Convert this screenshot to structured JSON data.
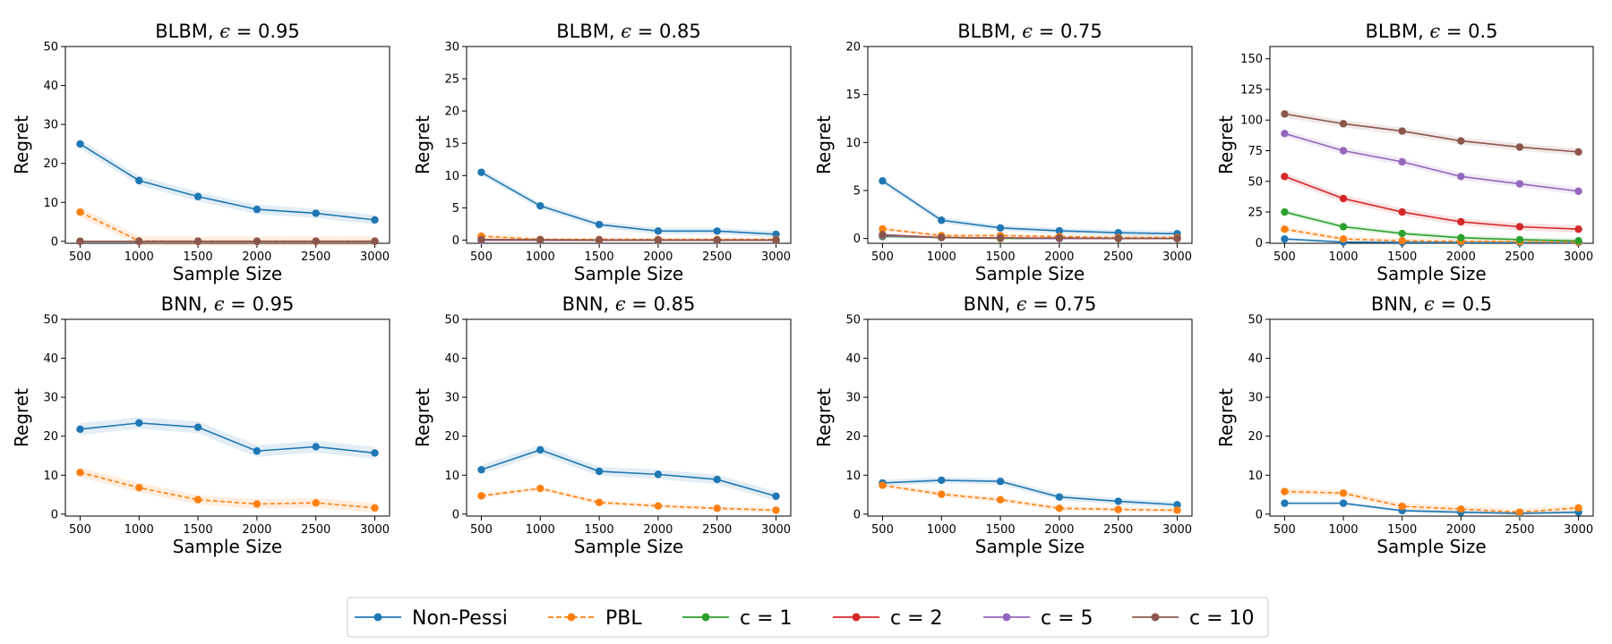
{
  "legend": [
    {
      "name": "Non-Pessi",
      "color": "#1f77b4",
      "dashed": false
    },
    {
      "name": "PBL",
      "color": "#ff7f0e",
      "dashed": true
    },
    {
      "name": "c = 1",
      "color": "#2ca02c",
      "dashed": false
    },
    {
      "name": "c = 2",
      "color": "#d62728",
      "dashed": false
    },
    {
      "name": "c = 5",
      "color": "#9467bd",
      "dashed": false
    },
    {
      "name": "c = 10",
      "color": "#8c564b",
      "dashed": false
    }
  ],
  "chart_data": [
    {
      "type": "line",
      "title_prefix": "BLBM, ",
      "epsilon": "0.95",
      "xlabel": "Sample Size",
      "ylabel": "Regret",
      "x": [
        500,
        1000,
        1500,
        2000,
        2500,
        3000
      ],
      "ylim": [
        -0.5,
        50
      ],
      "yticks": [
        0,
        10,
        20,
        30,
        40,
        50
      ],
      "series": [
        {
          "name": "Non-Pessi",
          "values": [
            25,
            15.6,
            11.5,
            8.2,
            7.2,
            5.5
          ],
          "band": 1.2
        },
        {
          "name": "PBL",
          "values": [
            7.5,
            0.1,
            0.05,
            0.05,
            0.05,
            0.05
          ],
          "band": 1.2
        },
        {
          "name": "c = 1",
          "values": [
            0,
            0,
            0,
            0,
            0,
            0
          ],
          "band": 0
        },
        {
          "name": "c = 2",
          "values": [
            0,
            0,
            0,
            0,
            0,
            0
          ],
          "band": 0
        },
        {
          "name": "c = 5",
          "values": [
            0,
            0,
            0,
            0,
            0,
            0
          ],
          "band": 0
        },
        {
          "name": "c = 10",
          "values": [
            0,
            0,
            0,
            0,
            0,
            0
          ],
          "band": 0
        }
      ]
    },
    {
      "type": "line",
      "title_prefix": "BLBM, ",
      "epsilon": "0.85",
      "xlabel": "Sample Size",
      "ylabel": "Regret",
      "x": [
        500,
        1000,
        1500,
        2000,
        2500,
        3000
      ],
      "ylim": [
        -0.5,
        30
      ],
      "yticks": [
        0,
        5,
        10,
        15,
        20,
        25,
        30
      ],
      "series": [
        {
          "name": "Non-Pessi",
          "values": [
            10.5,
            5.3,
            2.4,
            1.4,
            1.4,
            0.9
          ],
          "band": 0.5
        },
        {
          "name": "PBL",
          "values": [
            0.6,
            0.1,
            0.1,
            0.1,
            0.1,
            0.1
          ],
          "band": 0.3
        },
        {
          "name": "c = 1",
          "values": [
            0,
            0,
            0,
            0,
            0,
            0
          ],
          "band": 0
        },
        {
          "name": "c = 2",
          "values": [
            0,
            0,
            0,
            0,
            0,
            0
          ],
          "band": 0
        },
        {
          "name": "c = 5",
          "values": [
            0,
            0,
            0,
            0,
            0,
            0
          ],
          "band": 0
        },
        {
          "name": "c = 10",
          "values": [
            0.1,
            0.05,
            0,
            0,
            0,
            0
          ],
          "band": 0
        }
      ]
    },
    {
      "type": "line",
      "title_prefix": "BLBM, ",
      "epsilon": "0.75",
      "xlabel": "Sample Size",
      "ylabel": "Regret",
      "x": [
        500,
        1000,
        1500,
        2000,
        2500,
        3000
      ],
      "ylim": [
        -0.5,
        20
      ],
      "yticks": [
        0,
        5,
        10,
        15,
        20
      ],
      "series": [
        {
          "name": "Non-Pessi",
          "values": [
            6,
            1.9,
            1.1,
            0.8,
            0.6,
            0.5
          ],
          "band": 0.3
        },
        {
          "name": "PBL",
          "values": [
            1.0,
            0.3,
            0.3,
            0.2,
            0.1,
            0.1
          ],
          "band": 0.2
        },
        {
          "name": "c = 1",
          "values": [
            0.2,
            0.1,
            0,
            0,
            0,
            0
          ],
          "band": 0
        },
        {
          "name": "c = 2",
          "values": [
            0.3,
            0.1,
            0.05,
            0,
            0,
            0
          ],
          "band": 0
        },
        {
          "name": "c = 5",
          "values": [
            0.3,
            0.1,
            0.05,
            0,
            0,
            0
          ],
          "band": 0
        },
        {
          "name": "c = 10",
          "values": [
            0.4,
            0.1,
            0.05,
            0.05,
            0,
            0
          ],
          "band": 0
        }
      ]
    },
    {
      "type": "line",
      "title_prefix": "BLBM, ",
      "epsilon": "0.5",
      "xlabel": "Sample Size",
      "ylabel": "Regret",
      "x": [
        500,
        1000,
        1500,
        2000,
        2500,
        3000
      ],
      "ylim": [
        -0.5,
        160
      ],
      "yticks": [
        0,
        25,
        50,
        75,
        100,
        125,
        150
      ],
      "series": [
        {
          "name": "Non-Pessi",
          "values": [
            3,
            0.5,
            0.2,
            0.1,
            0.1,
            0.1
          ],
          "band": 1
        },
        {
          "name": "PBL",
          "values": [
            11,
            3,
            1.5,
            1,
            0.8,
            0.5
          ],
          "band": 2
        },
        {
          "name": "c = 1",
          "values": [
            25,
            13,
            7.5,
            4,
            2.5,
            1.5
          ],
          "band": 2
        },
        {
          "name": "c = 2",
          "values": [
            54,
            36,
            25,
            17,
            13,
            11
          ],
          "band": 3
        },
        {
          "name": "c = 5",
          "values": [
            89,
            75,
            66,
            54,
            48,
            42
          ],
          "band": 3
        },
        {
          "name": "c = 10",
          "values": [
            105,
            97,
            91,
            83,
            78,
            74
          ],
          "band": 3
        }
      ]
    },
    {
      "type": "line",
      "title_prefix": "BNN, ",
      "epsilon": "0.95",
      "xlabel": "Sample Size",
      "ylabel": "Regret",
      "x": [
        500,
        1000,
        1500,
        2000,
        2500,
        3000
      ],
      "ylim": [
        -0.5,
        50
      ],
      "yticks": [
        0,
        10,
        20,
        30,
        40,
        50
      ],
      "series": [
        {
          "name": "Non-Pessi",
          "values": [
            21.8,
            23.4,
            22.3,
            16.2,
            17.3,
            15.7
          ],
          "band": 1.5
        },
        {
          "name": "PBL",
          "values": [
            10.7,
            6.8,
            3.7,
            2.6,
            2.9,
            1.6
          ],
          "band": 1.2
        }
      ]
    },
    {
      "type": "line",
      "title_prefix": "BNN, ",
      "epsilon": "0.85",
      "xlabel": "Sample Size",
      "ylabel": "Regret",
      "x": [
        500,
        1000,
        1500,
        2000,
        2500,
        3000
      ],
      "ylim": [
        -0.5,
        50
      ],
      "yticks": [
        0,
        10,
        20,
        30,
        40,
        50
      ],
      "series": [
        {
          "name": "Non-Pessi",
          "values": [
            11.4,
            16.5,
            11,
            10.2,
            8.9,
            4.6
          ],
          "band": 1.2
        },
        {
          "name": "PBL",
          "values": [
            4.7,
            6.6,
            3,
            2.1,
            1.5,
            1
          ],
          "band": 0.6
        }
      ]
    },
    {
      "type": "line",
      "title_prefix": "BNN, ",
      "epsilon": "0.75",
      "xlabel": "Sample Size",
      "ylabel": "Regret",
      "x": [
        500,
        1000,
        1500,
        2000,
        2500,
        3000
      ],
      "ylim": [
        -0.5,
        50
      ],
      "yticks": [
        0,
        10,
        20,
        30,
        40,
        50
      ],
      "series": [
        {
          "name": "Non-Pessi",
          "values": [
            8,
            8.7,
            8.4,
            4.4,
            3.3,
            2.4
          ],
          "band": 0.8
        },
        {
          "name": "PBL",
          "values": [
            7.4,
            5.1,
            3.7,
            1.5,
            1.2,
            1
          ],
          "band": 0.6
        }
      ]
    },
    {
      "type": "line",
      "title_prefix": "BNN, ",
      "epsilon": "0.5",
      "xlabel": "Sample Size",
      "ylabel": "Regret",
      "x": [
        500,
        1000,
        1500,
        2000,
        2500,
        3000
      ],
      "ylim": [
        -0.5,
        50
      ],
      "yticks": [
        0,
        10,
        20,
        30,
        40,
        50
      ],
      "series": [
        {
          "name": "Non-Pessi",
          "values": [
            2.8,
            2.8,
            0.9,
            0.5,
            0.2,
            0.5
          ],
          "band": 0.4
        },
        {
          "name": "PBL",
          "values": [
            5.8,
            5.4,
            2,
            1.3,
            0.5,
            1.6
          ],
          "band": 0.8
        }
      ]
    }
  ]
}
